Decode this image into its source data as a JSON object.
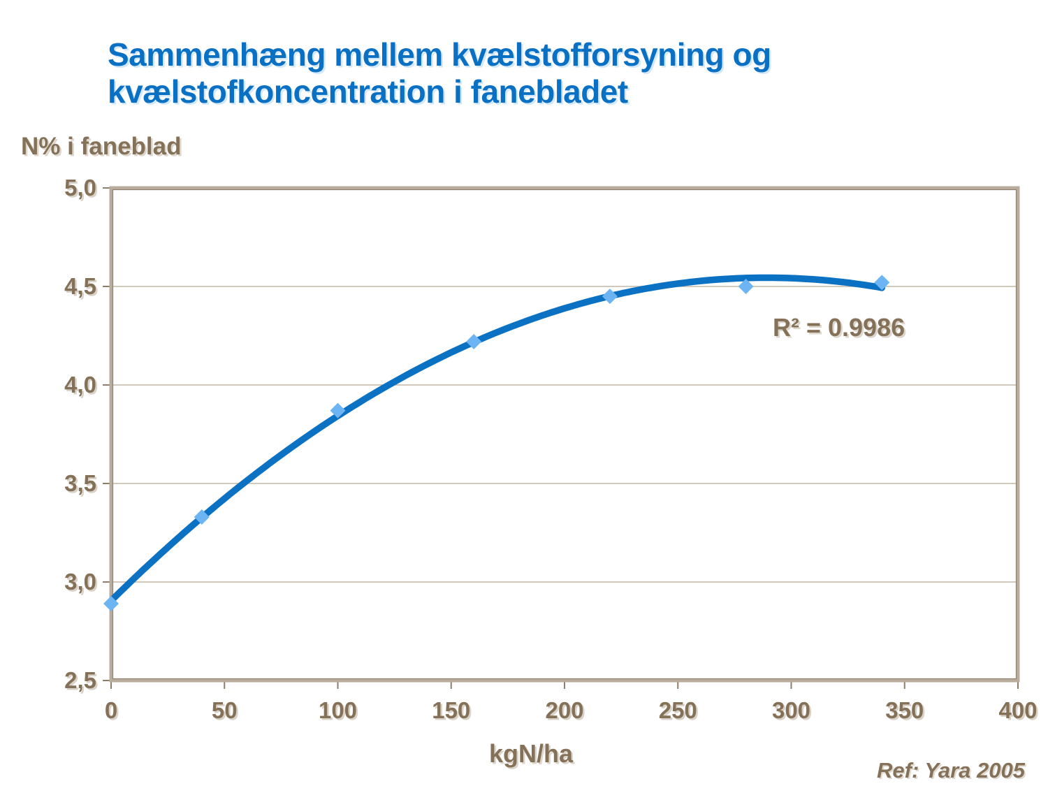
{
  "page": {
    "reference": "Ref: Yara 2005"
  },
  "colors": {
    "title": "#0a70c4",
    "curve": "#0b71c3",
    "marker": "#6db5f2",
    "text": "#847158",
    "grid": "#c3b7a7",
    "frame": "#b9ac9c",
    "frame_inner": "#8f8171",
    "tick": "#8d7e6b",
    "background": "#ffffff"
  },
  "chart_data": {
    "type": "scatter",
    "title": "Sammenhæng mellem kvælstofforsyning og\nkvælstofkoncentration i fanebladet",
    "y_axis_title": "N% i faneblad",
    "xlabel": "kgN/ha",
    "x": [
      0,
      40,
      100,
      160,
      220,
      280,
      340
    ],
    "y": [
      2.89,
      3.33,
      3.87,
      4.22,
      4.45,
      4.5,
      4.52
    ],
    "xlim": [
      0,
      400
    ],
    "ylim": [
      2.5,
      5.0
    ],
    "x_ticks": [
      0,
      50,
      100,
      150,
      200,
      250,
      300,
      350,
      400
    ],
    "x_tick_labels": [
      "0",
      "50",
      "100",
      "150",
      "200",
      "250",
      "300",
      "350",
      "400"
    ],
    "y_ticks": [
      2.5,
      3.0,
      3.5,
      4.0,
      4.5,
      5.0
    ],
    "y_tick_labels": [
      "2,5",
      "3,0",
      "3,5",
      "4,0",
      "4,5",
      "5,0"
    ],
    "grid": "horizontal-only",
    "legend": "none",
    "marker_style": "diamond",
    "trendline": {
      "type": "polynomial",
      "order": 2
    },
    "annotation": "R² = 0.9986"
  }
}
